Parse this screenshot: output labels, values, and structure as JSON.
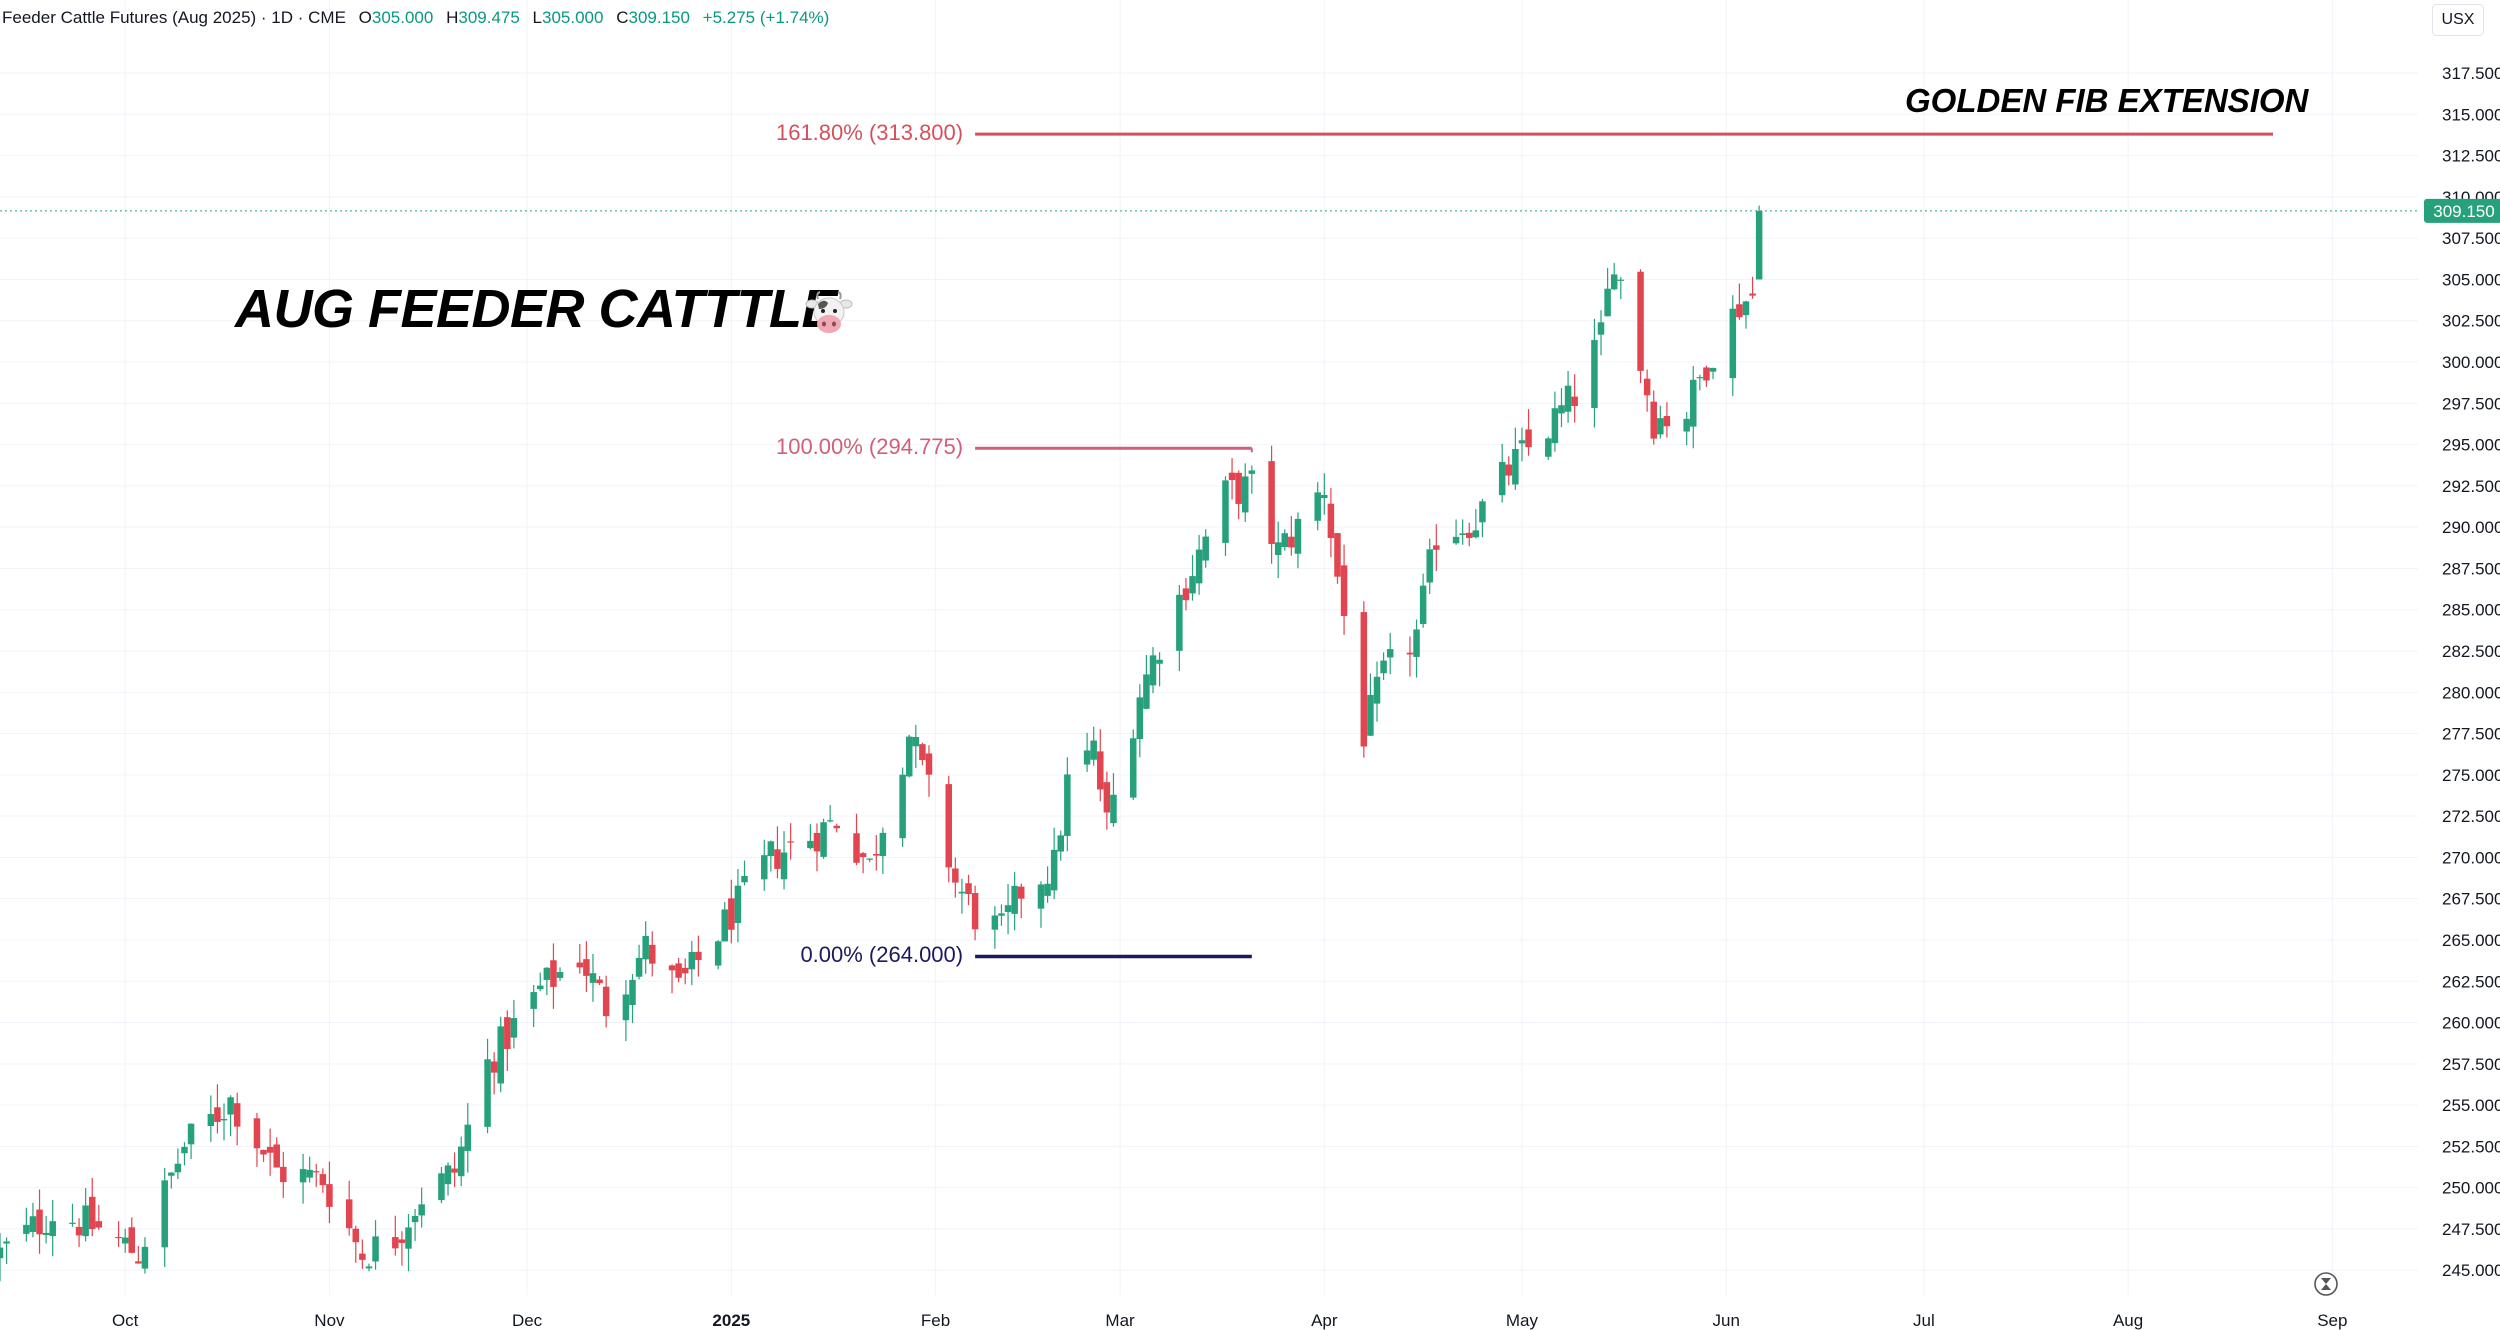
{
  "header": {
    "symbol": "Feeder Cattle Futures (Aug 2025) · 1D · CME",
    "open_label": "O",
    "open": "305.000",
    "high_label": "H",
    "high": "309.475",
    "low_label": "L",
    "low": "305.000",
    "close_label": "C",
    "close": "309.150",
    "change": "+5.275 (+1.74%)"
  },
  "currency": "USX",
  "annotations": {
    "title": "AUG FEEDER CATTTLE",
    "title_icon": "cow-icon",
    "extension": "GOLDEN FIB EXTENSION"
  },
  "colors": {
    "up": "#26a17b",
    "down": "#e1454f",
    "fib_161": "#d4515c",
    "fib_100": "#d0607a",
    "fib_0": "#1a1a5e",
    "price_badge": "#26a17b"
  },
  "chart_data": {
    "type": "candlestick",
    "y_axis_ticks": [
      "317.500",
      "315.000",
      "312.500",
      "310.000",
      "307.500",
      "305.000",
      "302.500",
      "300.000",
      "297.500",
      "295.000",
      "292.500",
      "290.000",
      "287.500",
      "285.000",
      "282.500",
      "280.000",
      "277.500",
      "275.000",
      "272.500",
      "270.000",
      "267.500",
      "265.000",
      "262.500",
      "260.000",
      "257.500",
      "255.000",
      "252.500",
      "250.000",
      "247.500",
      "245.000"
    ],
    "x_axis_ticks": [
      {
        "label": "Oct",
        "date": "2024-10-01"
      },
      {
        "label": "Nov",
        "date": "2024-11-01"
      },
      {
        "label": "Dec",
        "date": "2024-12-01"
      },
      {
        "label": "2025",
        "date": "2025-01-01",
        "bold": true
      },
      {
        "label": "Feb",
        "date": "2025-02-01"
      },
      {
        "label": "Mar",
        "date": "2025-03-01"
      },
      {
        "label": "Apr",
        "date": "2025-04-01"
      },
      {
        "label": "May",
        "date": "2025-05-01"
      },
      {
        "label": "Jun",
        "date": "2025-06-01"
      },
      {
        "label": "Jul",
        "date": "2025-07-01"
      },
      {
        "label": "Aug",
        "date": "2025-08-01"
      },
      {
        "label": "Sep",
        "date": "2025-09-01"
      }
    ],
    "ylim": [
      243.5,
      319.5
    ],
    "xlim": [
      "2024-09-12",
      "2025-09-14"
    ],
    "grid": true,
    "last_price": {
      "value": 309.15,
      "label": "309.150"
    },
    "fib_levels": [
      {
        "label": "161.80% (313.800)",
        "value": 313.8,
        "from": "2025-02-07",
        "to": "2025-08-23",
        "color_key": "fib_161"
      },
      {
        "label": "100.00% (294.775)",
        "value": 294.775,
        "from": "2025-02-07",
        "to": "2025-03-21",
        "color_key": "fib_100"
      },
      {
        "label": "0.00% (264.000)",
        "value": 264.0,
        "from": "2025-02-07",
        "to": "2025-03-21",
        "color_key": "fib_0"
      }
    ],
    "anchors": [
      {
        "date": "2024-09-12",
        "price": 246.0
      },
      {
        "date": "2024-09-20",
        "price": 248.5
      },
      {
        "date": "2024-09-27",
        "price": 247.5
      },
      {
        "date": "2024-10-03",
        "price": 246.0
      },
      {
        "date": "2024-10-10",
        "price": 252.5
      },
      {
        "date": "2024-10-17",
        "price": 255.3
      },
      {
        "date": "2024-10-24",
        "price": 251.0
      },
      {
        "date": "2024-10-31",
        "price": 250.5
      },
      {
        "date": "2024-11-06",
        "price": 246.0
      },
      {
        "date": "2024-11-11",
        "price": 247.0
      },
      {
        "date": "2024-11-15",
        "price": 249.5
      },
      {
        "date": "2024-11-20",
        "price": 251.0
      },
      {
        "date": "2024-11-25",
        "price": 257.5
      },
      {
        "date": "2024-12-03",
        "price": 262.0
      },
      {
        "date": "2024-12-09",
        "price": 264.0
      },
      {
        "date": "2024-12-13",
        "price": 261.0
      },
      {
        "date": "2024-12-19",
        "price": 264.5
      },
      {
        "date": "2024-12-24",
        "price": 262.0
      },
      {
        "date": "2024-12-31",
        "price": 266.0
      },
      {
        "date": "2025-01-07",
        "price": 270.0
      },
      {
        "date": "2025-01-14",
        "price": 271.5
      },
      {
        "date": "2025-01-17",
        "price": 272.3
      },
      {
        "date": "2025-01-22",
        "price": 269.5
      },
      {
        "date": "2025-01-28",
        "price": 277.5
      },
      {
        "date": "2025-01-31",
        "price": 274.0
      },
      {
        "date": "2025-02-04",
        "price": 268.5
      },
      {
        "date": "2025-02-07",
        "price": 266.5
      },
      {
        "date": "2025-02-11",
        "price": 265.5
      },
      {
        "date": "2025-02-14",
        "price": 268.0
      },
      {
        "date": "2025-02-19",
        "price": 269.5
      },
      {
        "date": "2025-02-21",
        "price": 274.5
      },
      {
        "date": "2025-02-25",
        "price": 276.5
      },
      {
        "date": "2025-02-27",
        "price": 272.0
      },
      {
        "date": "2025-03-04",
        "price": 280.0
      },
      {
        "date": "2025-03-07",
        "price": 283.0
      },
      {
        "date": "2025-03-12",
        "price": 287.5
      },
      {
        "date": "2025-03-17",
        "price": 292.0
      },
      {
        "date": "2025-03-21",
        "price": 292.5
      },
      {
        "date": "2025-03-25",
        "price": 288.5
      },
      {
        "date": "2025-03-28",
        "price": 290.0
      },
      {
        "date": "2025-04-01",
        "price": 292.5
      },
      {
        "date": "2025-04-03",
        "price": 287.0
      },
      {
        "date": "2025-04-07",
        "price": 277.5
      },
      {
        "date": "2025-04-10",
        "price": 281.0
      },
      {
        "date": "2025-04-15",
        "price": 283.5
      },
      {
        "date": "2025-04-18",
        "price": 289.5
      },
      {
        "date": "2025-04-24",
        "price": 290.5
      },
      {
        "date": "2025-04-29",
        "price": 293.5
      },
      {
        "date": "2025-05-05",
        "price": 296.0
      },
      {
        "date": "2025-05-09",
        "price": 298.0
      },
      {
        "date": "2025-05-13",
        "price": 301.5
      },
      {
        "date": "2025-05-15",
        "price": 306.5
      },
      {
        "date": "2025-05-19",
        "price": 300.0
      },
      {
        "date": "2025-05-21",
        "price": 296.5
      },
      {
        "date": "2025-05-26",
        "price": 297.0
      },
      {
        "date": "2025-05-29",
        "price": 300.0
      },
      {
        "date": "2025-06-03",
        "price": 303.5
      },
      {
        "date": "2025-06-05",
        "price": 304.0
      }
    ],
    "last_candle": {
      "date": "2025-06-06",
      "open": 305.0,
      "high": 309.475,
      "low": 305.0,
      "close": 309.15
    }
  }
}
